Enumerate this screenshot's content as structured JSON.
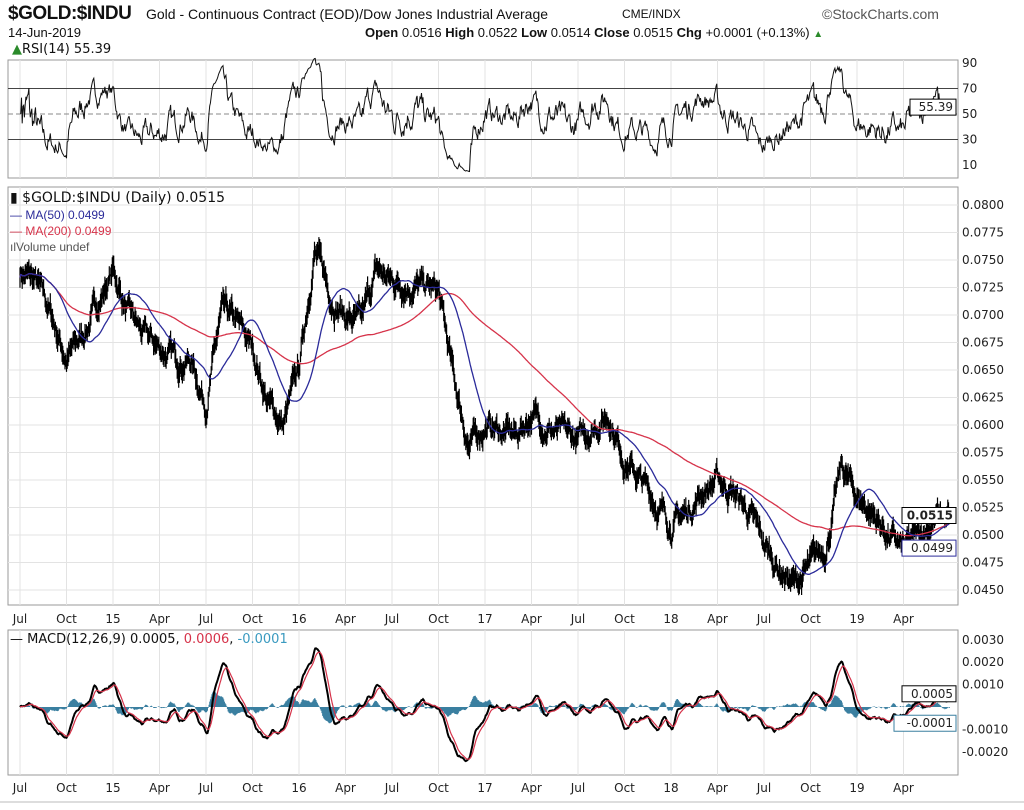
{
  "header": {
    "symbol": "$GOLD:$INDU",
    "description": "Gold - Continuous Contract (EOD)/Dow Jones Industrial Average",
    "exchange": "CME/INDX",
    "brand": "©StockCharts.com",
    "date": "14-Jun-2019",
    "open_label": "Open",
    "open": "0.0516",
    "high_label": "High",
    "high": "0.0522",
    "low_label": "Low",
    "low": "0.0514",
    "close_label": "Close",
    "close": "0.0515",
    "chg_label": "Chg",
    "chg": "+0.0001 (+0.13%)"
  },
  "chart_data": [
    {
      "type": "line",
      "title": "RSI(14) 55.39",
      "last": "55.39",
      "yticks": [
        "90",
        "70",
        "50",
        "30",
        "10"
      ],
      "ylim": [
        0,
        100
      ],
      "levels": [
        70,
        50,
        30
      ]
    },
    {
      "type": "line",
      "title": "$GOLD:$INDU (Daily) 0.0515",
      "legend": [
        "MA(50) 0.0499",
        "MA(200) 0.0499",
        "Volume undef"
      ],
      "series_colors": {
        "price": "#000000",
        "ma50": "#2b2b9a",
        "ma200": "#d6334a"
      },
      "start": "Jul 2014",
      "interval": "month",
      "monthly_close": [
        0.074,
        0.073,
        0.07,
        0.066,
        0.068,
        0.071,
        0.074,
        0.07,
        0.068,
        0.067,
        0.066,
        0.066,
        0.062,
        0.07,
        0.069,
        0.067,
        0.062,
        0.06,
        0.065,
        0.076,
        0.072,
        0.07,
        0.069,
        0.074,
        0.073,
        0.073,
        0.0725,
        0.072,
        0.064,
        0.058,
        0.06,
        0.0595,
        0.059,
        0.061,
        0.06,
        0.059,
        0.0585,
        0.06,
        0.061,
        0.057,
        0.055,
        0.053,
        0.051,
        0.052,
        0.054,
        0.055,
        0.054,
        0.052,
        0.049,
        0.047,
        0.0455,
        0.047,
        0.049,
        0.056,
        0.0535,
        0.052,
        0.05,
        0.0485,
        0.05,
        0.0515
      ],
      "ylim": [
        0.044,
        0.081
      ],
      "yticks": [
        "0.0800",
        "0.0775",
        "0.0750",
        "0.0725",
        "0.0700",
        "0.0675",
        "0.0650",
        "0.0625",
        "0.0600",
        "0.0575",
        "0.0550",
        "0.0525",
        "0.0500",
        "0.0475",
        "0.0450"
      ],
      "last_price_label": "0.0515",
      "last_ma_label": "0.0499"
    },
    {
      "type": "line",
      "title": "MACD(12,26,9)",
      "macd": "0.0005",
      "signal": "0.0006",
      "hist": "-0.0001",
      "ylim": [
        -0.0025,
        0.0035
      ],
      "yticks": [
        "0.0030",
        "0.0020",
        "0.0010",
        "-0.0010",
        "-0.0020"
      ],
      "last_macd_label": "0.0005",
      "last_hist_label": "-0.0001"
    }
  ],
  "xaxis": {
    "labels": [
      "Jul",
      "Oct",
      "15",
      "Apr",
      "Jul",
      "Oct",
      "16",
      "Apr",
      "Jul",
      "Oct",
      "17",
      "Apr",
      "Jul",
      "Oct",
      "18",
      "Apr",
      "Jul",
      "Oct",
      "19",
      "Apr"
    ]
  }
}
